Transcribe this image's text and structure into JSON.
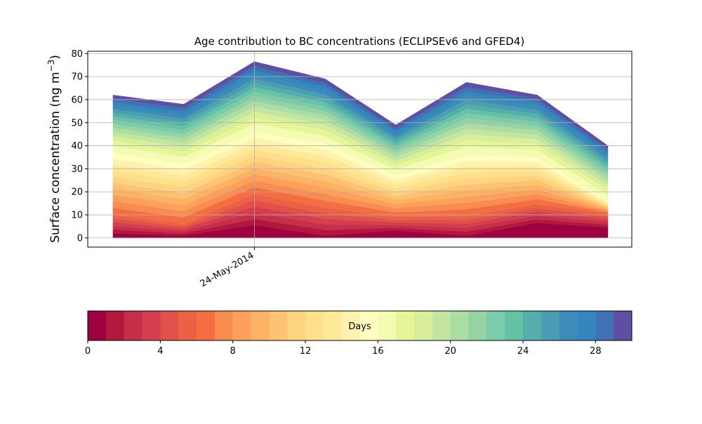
{
  "chart_data": {
    "type": "area",
    "title": "Age contribution to BC concentrations (ECLIPSEv6 and GFED4)",
    "ylabel_main": "Surface concentration (ng m",
    "ylabel_sup": "−3",
    "ylabel_close": ")",
    "xlabel": "",
    "ylim": [
      -4,
      81
    ],
    "yticks": [
      "0",
      "10",
      "20",
      "30",
      "40",
      "50",
      "60",
      "70",
      "80"
    ],
    "x_positions": [
      0,
      1,
      2,
      3,
      4,
      5,
      6,
      7
    ],
    "x_tick": {
      "label": "24-May-2014",
      "position": 2
    },
    "grid": true,
    "stacked": true,
    "total": [
      62,
      58,
      76.5,
      69,
      49,
      67.5,
      62,
      40
    ],
    "layer_1": [
      2,
      1,
      5.5,
      1,
      3.2,
      1,
      6.5,
      4.5
    ],
    "layer_6": [
      10,
      6,
      19,
      13,
      9,
      9.5,
      14.5,
      10.5
    ],
    "warm_to_cool_boundary": [
      37,
      32,
      46,
      41,
      27,
      36,
      35,
      16
    ],
    "layers": 30,
    "colorbar": {
      "label": "Days",
      "range": [
        0,
        30
      ],
      "ticks": [
        "0",
        "4",
        "8",
        "12",
        "16",
        "20",
        "24",
        "28"
      ],
      "tick_values": [
        0,
        4,
        8,
        12,
        16,
        20,
        24,
        28
      ],
      "colors": [
        "#9e0142",
        "#b2183e",
        "#c62f4a",
        "#d53e4f",
        "#e0514a",
        "#eb6146",
        "#f46d43",
        "#f88d52",
        "#fca05c",
        "#fdb366",
        "#fdc373",
        "#fed481",
        "#fee08b",
        "#fee99a",
        "#fff2ac",
        "#ffffbf",
        "#f4fbb2",
        "#e6f598",
        "#d7ef9b",
        "#c2e6a0",
        "#abdda4",
        "#94d4a4",
        "#7accaa",
        "#66c2a5",
        "#55aeac",
        "#4a9db3",
        "#3e8ab8",
        "#3288bd",
        "#4370b5",
        "#5e4fa2"
      ]
    }
  }
}
